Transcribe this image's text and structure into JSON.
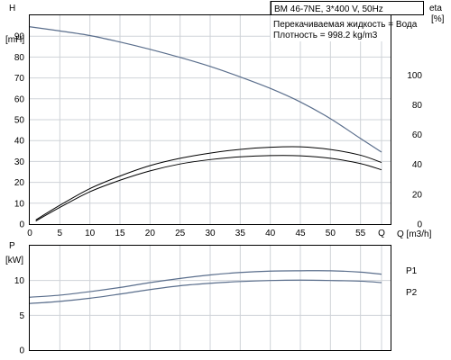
{
  "chart_data": [
    {
      "type": "line",
      "id": "head-efficiency",
      "title": "BM 46-7NE, 3*400 V, 50Hz",
      "annotations": [
        "Перекачиваемая жидкость = Вода",
        "Плотность = 998.2 kg/m3"
      ],
      "xlabel": "Q [m3/h]",
      "ylabel_left": [
        "H",
        "[mH]"
      ],
      "ylabel_right": [
        "eta",
        "[%]"
      ],
      "xlim": [
        0,
        60
      ],
      "ylim": [
        0,
        100
      ],
      "ylim_right": [
        0,
        140
      ],
      "x_ticks": [
        "0",
        "5",
        "10",
        "15",
        "20",
        "25",
        "30",
        "35",
        "40",
        "45",
        "50",
        "55"
      ],
      "x_tick_values": [
        0,
        5,
        10,
        15,
        20,
        25,
        30,
        35,
        40,
        45,
        50,
        55
      ],
      "y_ticks": [
        "0",
        "10",
        "20",
        "30",
        "40",
        "50",
        "60",
        "70",
        "80",
        "90"
      ],
      "y_tick_values": [
        0,
        10,
        20,
        30,
        40,
        50,
        60,
        70,
        80,
        90
      ],
      "y_ticks_right": [
        "0",
        "20",
        "40",
        "60",
        "80",
        "100"
      ],
      "y_tick_values_right": [
        0,
        20,
        40,
        60,
        80,
        100
      ],
      "q_marker_label": "Q",
      "series": [
        {
          "axis": "left",
          "color": "#5a6e8c",
          "x": [
            0,
            5,
            10,
            15,
            20,
            25,
            30,
            35,
            40,
            45,
            50,
            55,
            58.5
          ],
          "y": [
            94.5,
            92.5,
            90.3,
            87.2,
            83.7,
            79.8,
            75.5,
            70.5,
            65,
            58.5,
            50.5,
            41,
            34.5
          ]
        },
        {
          "axis": "left",
          "color": "#000000",
          "x": [
            1,
            5,
            10,
            15,
            20,
            25,
            30,
            35,
            40,
            45,
            50,
            55,
            58.5
          ],
          "y": [
            2,
            9,
            17,
            23,
            28,
            31.5,
            34,
            35.8,
            36.8,
            37,
            35.7,
            33,
            29.5
          ]
        },
        {
          "axis": "left",
          "color": "#000000",
          "x": [
            1,
            5,
            10,
            15,
            20,
            25,
            30,
            35,
            40,
            45,
            50,
            55,
            58.5
          ],
          "y": [
            1.5,
            8,
            15.5,
            21,
            25.5,
            28.8,
            30.9,
            32.2,
            32.8,
            32.7,
            31.5,
            29,
            26
          ]
        }
      ]
    },
    {
      "type": "line",
      "id": "power",
      "ylabel_left": [
        "P",
        "[kW]"
      ],
      "xlim": [
        0,
        60
      ],
      "ylim": [
        0,
        15
      ],
      "y_ticks": [
        "0",
        "5",
        "10"
      ],
      "y_tick_values": [
        0,
        5,
        10
      ],
      "series": [
        {
          "name": "P1",
          "color": "#5a6e8c",
          "x": [
            0,
            5,
            10,
            15,
            20,
            25,
            30,
            35,
            40,
            45,
            50,
            55,
            58.5
          ],
          "y": [
            7.6,
            7.9,
            8.4,
            9.0,
            9.7,
            10.3,
            10.8,
            11.15,
            11.35,
            11.4,
            11.4,
            11.2,
            10.9
          ]
        },
        {
          "name": "P2",
          "color": "#5a6e8c",
          "x": [
            0,
            5,
            10,
            15,
            20,
            25,
            30,
            35,
            40,
            45,
            50,
            55,
            58.5
          ],
          "y": [
            6.7,
            7.0,
            7.45,
            8.05,
            8.7,
            9.25,
            9.6,
            9.85,
            10.0,
            10.05,
            10.0,
            9.9,
            9.7
          ]
        }
      ]
    }
  ]
}
